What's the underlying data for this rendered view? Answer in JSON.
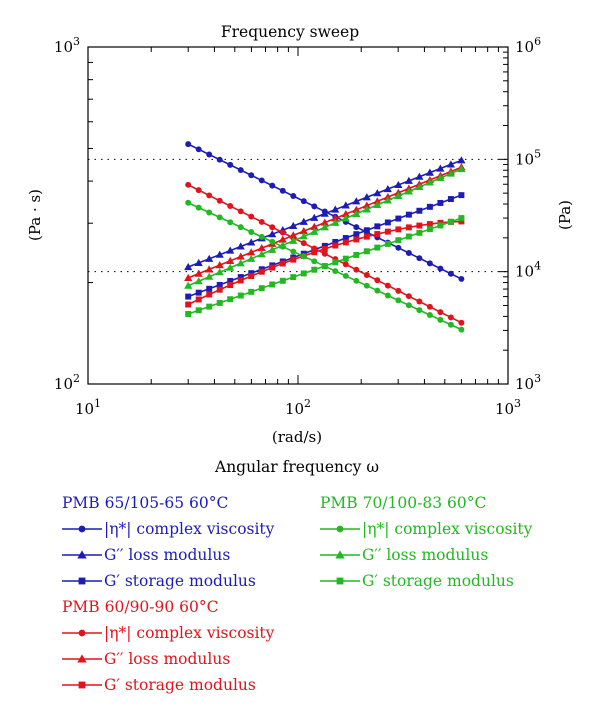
{
  "chart_data": {
    "type": "line",
    "title": "Frequency sweep",
    "xlabel_lines": [
      "(rad/s)",
      "Angular frequency ω"
    ],
    "ylabel_left": "(Pa · s)",
    "ylabel_right": "(Pa)",
    "x_scale": "log",
    "y_left_scale": "log",
    "y_right_scale": "log",
    "xlim": [
      10,
      1000
    ],
    "ylim_left": [
      100,
      1000
    ],
    "ylim_right": [
      1000,
      1000000
    ],
    "x_ticks": [
      {
        "base": "10",
        "exp": "1"
      },
      {
        "base": "10",
        "exp": "2"
      },
      {
        "base": "10",
        "exp": "3"
      }
    ],
    "y_left_ticks": [
      {
        "base": "10",
        "exp": "2"
      },
      {
        "base": "10",
        "exp": "3"
      }
    ],
    "y_right_ticks": [
      {
        "base": "10",
        "exp": "3"
      },
      {
        "base": "10",
        "exp": "4"
      },
      {
        "base": "10",
        "exp": "5"
      },
      {
        "base": "10",
        "exp": "6"
      }
    ],
    "gridlines_right": [
      10000,
      100000
    ],
    "grid_style": "dotted horizontal at right-axis decades",
    "legend_placement": "below chart, two columns",
    "x_range": [
      30,
      600
    ],
    "points_per_series": 27,
    "series": [
      {
        "group": "PMB 65/105-65 60°C",
        "color": "#1c1cb8",
        "marker": "circle",
        "axis": "left",
        "start": 515,
        "end": 205
      },
      {
        "group": "PMB 65/105-65 60°C",
        "color": "#1c1cb8",
        "marker": "triangle",
        "axis": "right",
        "start": 11000,
        "end": 98000
      },
      {
        "group": "PMB 65/105-65 60°C",
        "color": "#1c1cb8",
        "marker": "square",
        "axis": "right",
        "start": 6000,
        "end": 48000
      },
      {
        "group": "PMB 60/90-90 60°C",
        "color": "#e0141c",
        "marker": "circle",
        "axis": "left",
        "start": 390,
        "end": 152
      },
      {
        "group": "PMB 60/90-90 60°C",
        "color": "#e0141c",
        "marker": "triangle",
        "axis": "right",
        "start": 8800,
        "end": 85000
      },
      {
        "group": "PMB 60/90-90 60°C",
        "color": "#e0141c",
        "marker": "square",
        "axis": "right",
        "start": 5100,
        "end": 28000
      },
      {
        "group": "PMB 70/100-83 60°C",
        "color": "#22b822",
        "marker": "circle",
        "axis": "left",
        "start": 345,
        "end": 145
      },
      {
        "group": "PMB 70/100-83 60°C",
        "color": "#22b822",
        "marker": "triangle",
        "axis": "right",
        "start": 7500,
        "end": 82000
      },
      {
        "group": "PMB 70/100-83 60°C",
        "color": "#22b822",
        "marker": "square",
        "axis": "right",
        "start": 4200,
        "end": 30000
      }
    ]
  },
  "legend": {
    "groups": [
      {
        "title": "PMB 65/105-65 60°C",
        "color": "#1c1cb8",
        "items": [
          {
            "marker": "circle",
            "label": "|η*| complex viscosity"
          },
          {
            "marker": "triangle",
            "label": "G′′ loss modulus"
          },
          {
            "marker": "square",
            "label": "G′ storage modulus"
          }
        ]
      },
      {
        "title": "PMB 60/90-90 60°C",
        "color": "#e0141c",
        "items": [
          {
            "marker": "circle",
            "label": "|η*| complex viscosity"
          },
          {
            "marker": "triangle",
            "label": "G′′ loss modulus"
          },
          {
            "marker": "square",
            "label": "G′ storage modulus"
          }
        ]
      },
      {
        "title": "PMB 70/100-83 60°C",
        "color": "#22b822",
        "items": [
          {
            "marker": "circle",
            "label": "|η*| complex viscosity"
          },
          {
            "marker": "triangle",
            "label": "G′′ loss modulus"
          },
          {
            "marker": "square",
            "label": "G′ storage modulus"
          }
        ]
      }
    ]
  }
}
